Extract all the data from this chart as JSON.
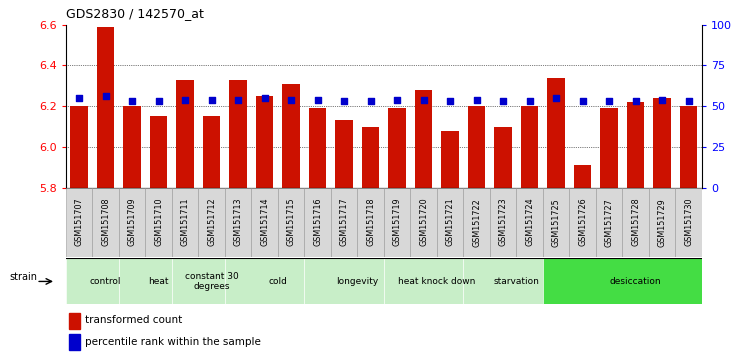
{
  "title": "GDS2830 / 142570_at",
  "samples": [
    "GSM151707",
    "GSM151708",
    "GSM151709",
    "GSM151710",
    "GSM151711",
    "GSM151712",
    "GSM151713",
    "GSM151714",
    "GSM151715",
    "GSM151716",
    "GSM151717",
    "GSM151718",
    "GSM151719",
    "GSM151720",
    "GSM151721",
    "GSM151722",
    "GSM151723",
    "GSM151724",
    "GSM151725",
    "GSM151726",
    "GSM151727",
    "GSM151728",
    "GSM151729",
    "GSM151730"
  ],
  "transformed_count": [
    6.2,
    6.59,
    6.2,
    6.15,
    6.33,
    6.15,
    6.33,
    6.25,
    6.31,
    6.19,
    6.13,
    6.1,
    6.19,
    6.28,
    6.08,
    6.2,
    6.1,
    6.2,
    6.34,
    5.91,
    6.19,
    6.22,
    6.24,
    6.2
  ],
  "percentile_rank": [
    55,
    56,
    53,
    53,
    54,
    54,
    54,
    55,
    54,
    54,
    53,
    53,
    54,
    54,
    53,
    54,
    53,
    53,
    55,
    53,
    53,
    53,
    54,
    53
  ],
  "groups": [
    {
      "label": "control",
      "start": 0,
      "end": 2
    },
    {
      "label": "heat",
      "start": 2,
      "end": 4
    },
    {
      "label": "constant 30\ndegrees",
      "start": 4,
      "end": 6
    },
    {
      "label": "cold",
      "start": 6,
      "end": 9
    },
    {
      "label": "longevity",
      "start": 9,
      "end": 12
    },
    {
      "label": "heat knock down",
      "start": 12,
      "end": 15
    },
    {
      "label": "starvation",
      "start": 15,
      "end": 18
    },
    {
      "label": "desiccation",
      "start": 18,
      "end": 24
    }
  ],
  "group_colors": [
    "#c8eec8",
    "#c8eec8",
    "#c8eec8",
    "#c8eec8",
    "#c8eec8",
    "#c8eec8",
    "#c8eec8",
    "#44dd44"
  ],
  "ylim": [
    5.8,
    6.6
  ],
  "yticks": [
    5.8,
    6.0,
    6.2,
    6.4,
    6.6
  ],
  "bar_color": "#cc1100",
  "dot_color": "#0000cc",
  "bar_bottom": 5.8,
  "right_yticks": [
    0,
    25,
    50,
    75,
    100
  ],
  "right_ylabels": [
    "0",
    "25",
    "50",
    "75",
    "100%"
  ]
}
